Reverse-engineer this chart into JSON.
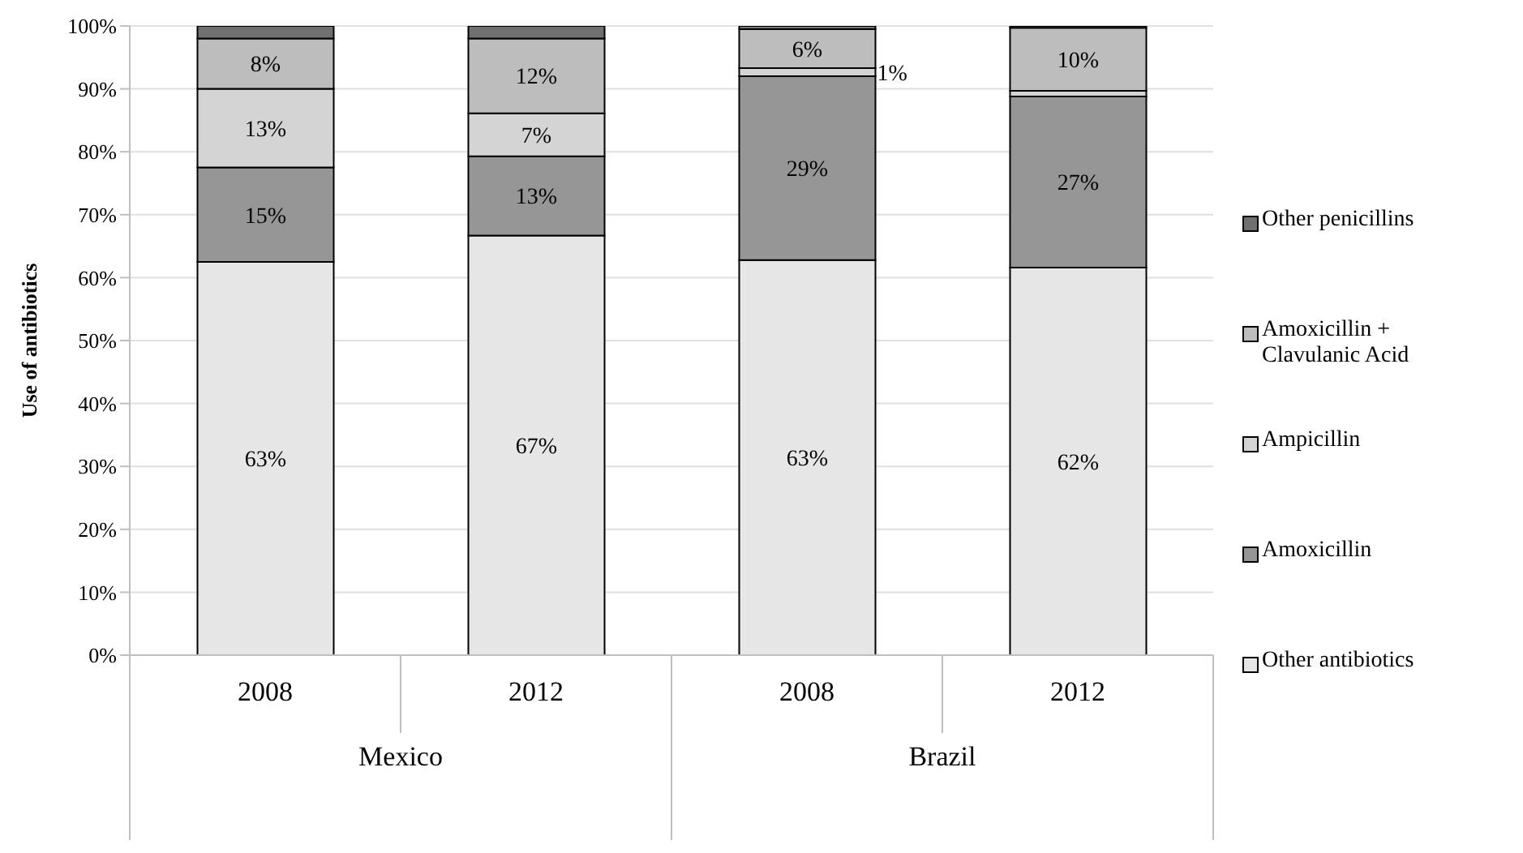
{
  "chart_data": {
    "type": "bar",
    "stacked": true,
    "ylabel": "Use of antibiotics",
    "categories": [
      "2008",
      "2012",
      "2008",
      "2012"
    ],
    "annotations": [
      "Mexico",
      "Brazil"
    ],
    "series": [
      {
        "name": "Other antibiotics",
        "color": "#e6e6e6",
        "values": [
          62.5,
          66.7,
          62.8,
          61.6
        ],
        "value_labels": [
          "63%",
          "67%",
          "63%",
          "62%"
        ]
      },
      {
        "name": "Amoxicillin",
        "color": "#969696",
        "values": [
          15,
          12.6,
          29.2,
          27.2
        ],
        "value_labels": [
          "15%",
          "13%",
          "29%",
          "27%"
        ]
      },
      {
        "name": "Ampicillin",
        "color": "#d4d4d4",
        "values": [
          12.5,
          6.8,
          1.3,
          0.9
        ],
        "value_labels": [
          "13%",
          "7%",
          "1%",
          null
        ]
      },
      {
        "name": "Amoxicillin + Clavulanic Acid",
        "color": "#bdbdbd",
        "values": [
          8,
          11.9,
          6.2,
          10
        ],
        "value_labels": [
          "8%",
          "12%",
          "6%",
          "10%"
        ]
      },
      {
        "name": "Other penicillins",
        "color": "#707070",
        "values": [
          2,
          2,
          0.5,
          0.3
        ],
        "value_labels": [
          null,
          null,
          null,
          null
        ]
      }
    ],
    "ylim": [
      0,
      100
    ],
    "yticks": [
      {
        "value": 0,
        "label": "0%"
      },
      {
        "value": 10,
        "label": "10%"
      },
      {
        "value": 20,
        "label": "20%"
      },
      {
        "value": 30,
        "label": "30%"
      },
      {
        "value": 40,
        "label": "40%"
      },
      {
        "value": 50,
        "label": "50%"
      },
      {
        "value": 60,
        "label": "60%"
      },
      {
        "value": 70,
        "label": "70%"
      },
      {
        "value": 80,
        "label": "80%"
      },
      {
        "value": 90,
        "label": "90%"
      },
      {
        "value": 100,
        "label": "100%"
      }
    ],
    "grid": "y",
    "legend": "right"
  }
}
